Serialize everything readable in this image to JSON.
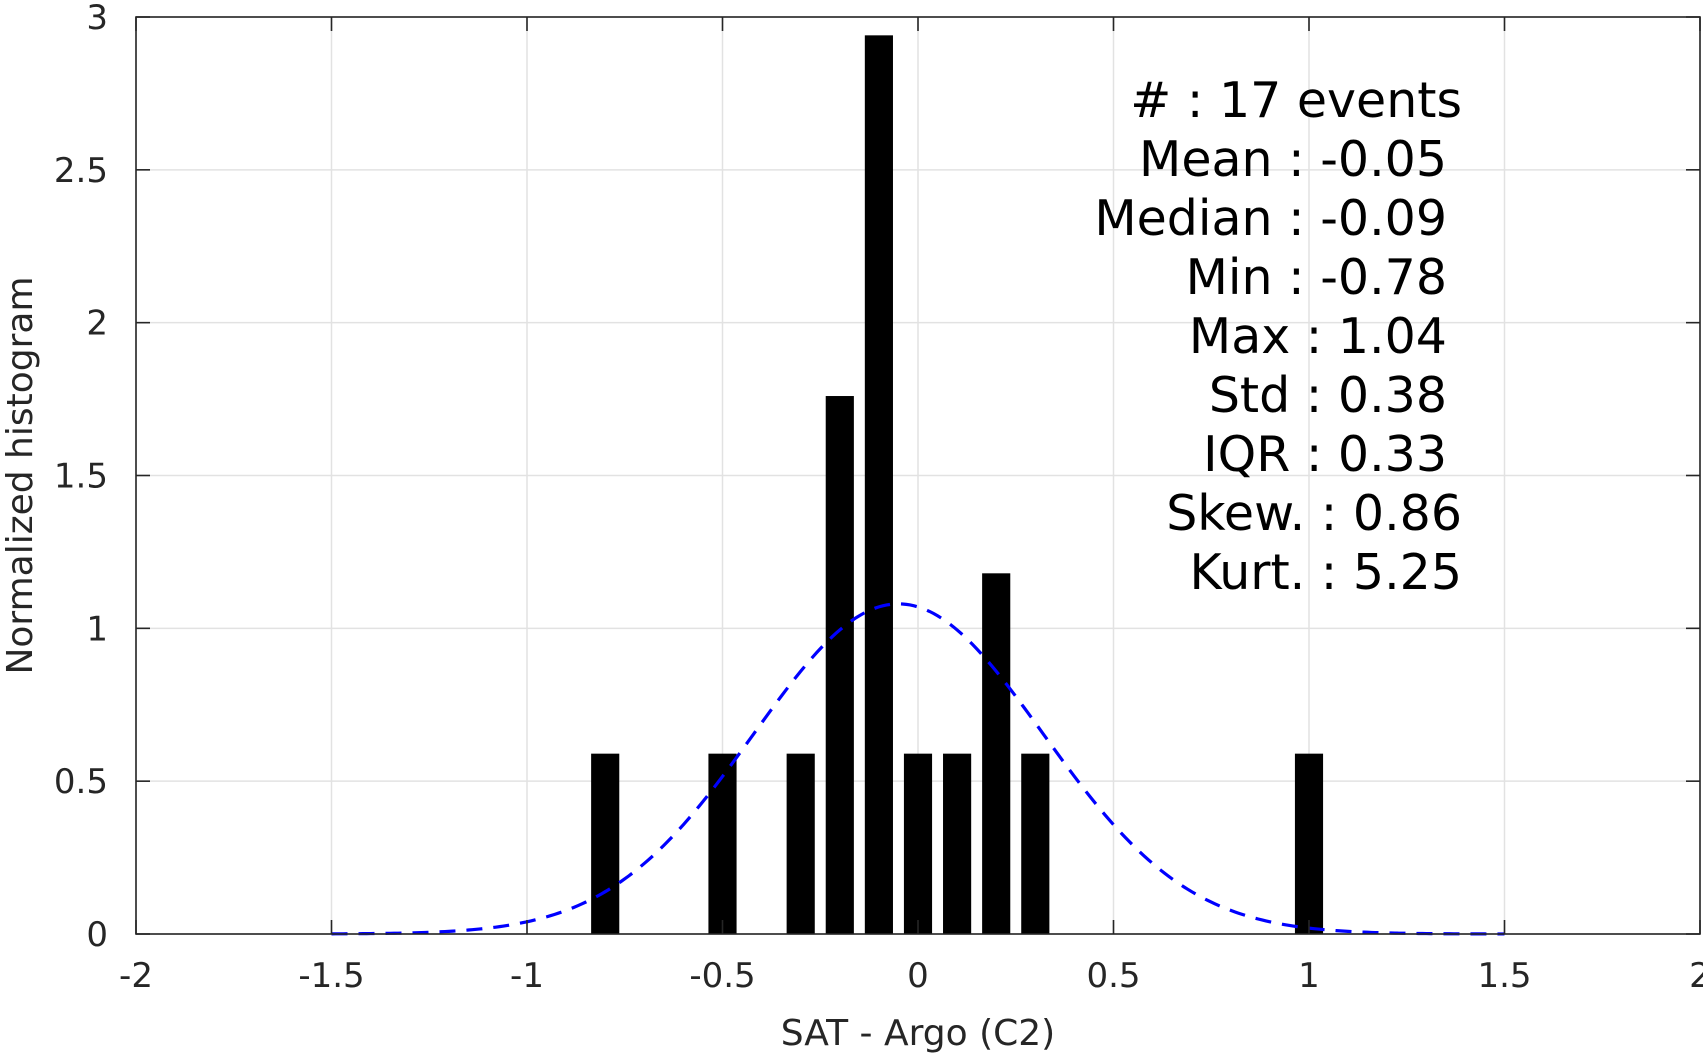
{
  "chart_data": {
    "type": "bar",
    "xlabel": "SAT - Argo (C2)",
    "ylabel": "Normalized histogram",
    "xlim": [
      -2,
      2
    ],
    "ylim": [
      0,
      3
    ],
    "x_ticks": [
      -2,
      -1.5,
      -1,
      -0.5,
      0,
      0.5,
      1,
      1.5,
      2
    ],
    "y_ticks": [
      0,
      0.5,
      1,
      1.5,
      2,
      2.5,
      3
    ],
    "x_tick_labels": [
      "-2",
      "-1.5",
      "-1",
      "-0.5",
      "0",
      "0.5",
      "1",
      "1.5",
      "2"
    ],
    "y_tick_labels": [
      "0",
      "0.5",
      "1",
      "1.5",
      "2",
      "2.5",
      "3"
    ],
    "grid": true,
    "bin_width": 0.1,
    "bar_color": "#000000",
    "bars": [
      {
        "x": -0.8,
        "value": 0.59
      },
      {
        "x": -0.5,
        "value": 0.59
      },
      {
        "x": -0.3,
        "value": 0.59
      },
      {
        "x": -0.2,
        "value": 1.76
      },
      {
        "x": -0.1,
        "value": 2.94
      },
      {
        "x": 0.0,
        "value": 0.59
      },
      {
        "x": 0.1,
        "value": 0.59
      },
      {
        "x": 0.2,
        "value": 1.18
      },
      {
        "x": 0.3,
        "value": 0.59
      },
      {
        "x": 1.0,
        "value": 0.59
      }
    ],
    "fit_curve": {
      "type": "gaussian",
      "mean": -0.05,
      "std": 0.37,
      "peak": 1.08,
      "x_range": [
        -1.5,
        1.5
      ],
      "color": "#0000ff",
      "style": "dashed"
    },
    "stats_annotation": [
      {
        "label": "#",
        "value": "17 events",
        "text": "#  : 17 events"
      },
      {
        "label": "Mean",
        "value": "-0.05",
        "text": "Mean : -0.05"
      },
      {
        "label": "Median",
        "value": "-0.09",
        "text": "Median : -0.09"
      },
      {
        "label": "Min",
        "value": "-0.78",
        "text": "Min : -0.78"
      },
      {
        "label": "Max",
        "value": "1.04",
        "text": "Max : 1.04"
      },
      {
        "label": "Std",
        "value": "0.38",
        "text": "Std : 0.38"
      },
      {
        "label": "IQR",
        "value": "0.33",
        "text": "IQR : 0.33"
      },
      {
        "label": "Skew.",
        "value": "0.86",
        "text": "Skew. : 0.86"
      },
      {
        "label": "Kurt.",
        "value": "5.25",
        "text": "Kurt. : 5.25"
      }
    ]
  }
}
